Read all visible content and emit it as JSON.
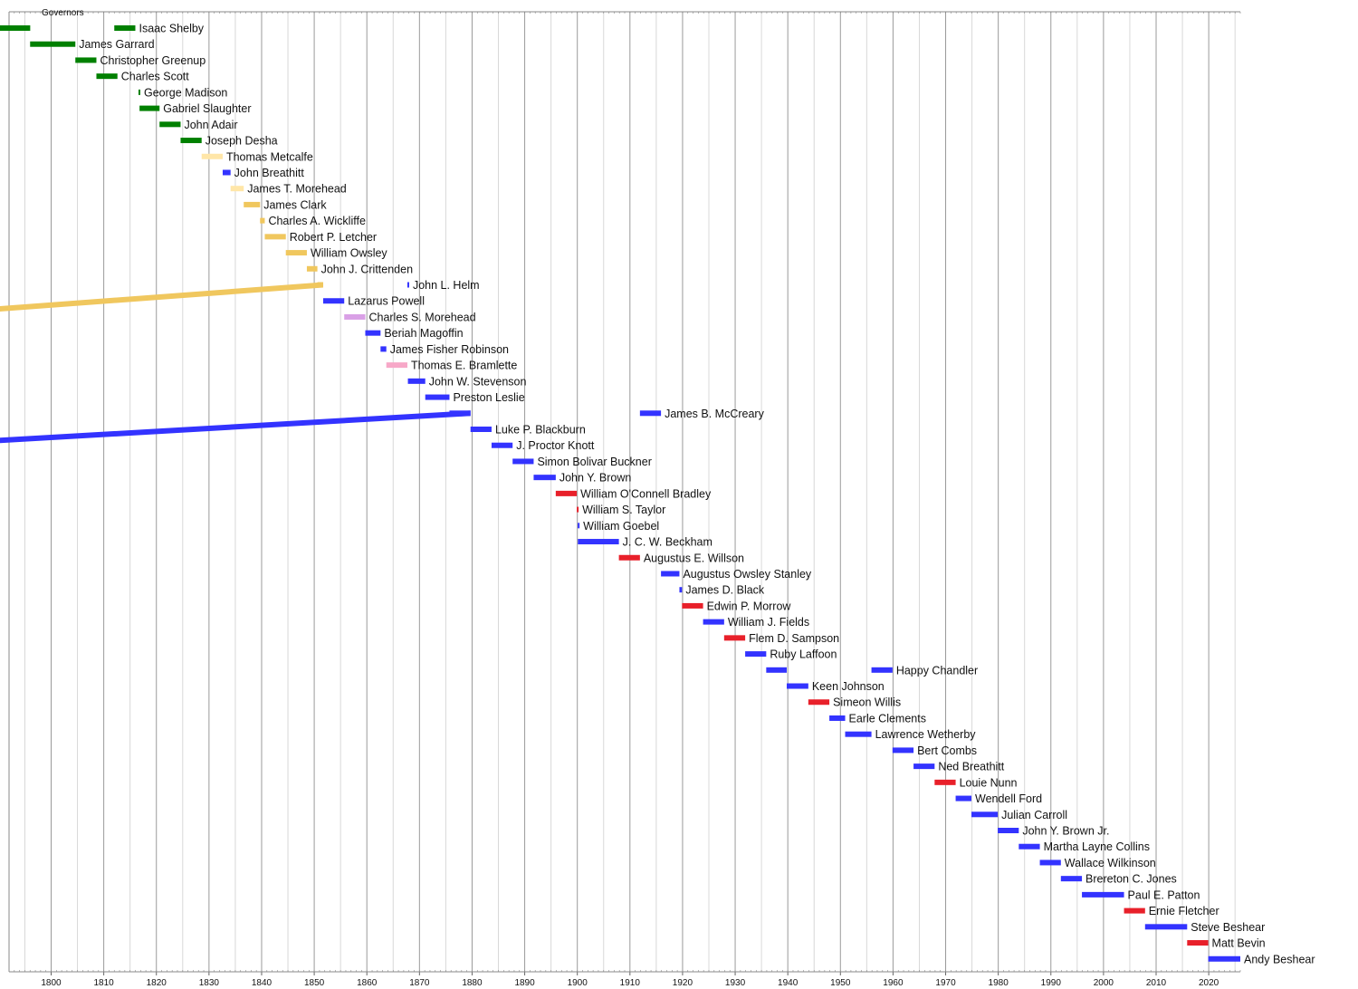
{
  "chart_data": {
    "type": "timeline",
    "title": "Governors",
    "x_range": [
      1792,
      2026
    ],
    "ticks": [
      1800,
      1810,
      1820,
      1830,
      1840,
      1850,
      1860,
      1870,
      1880,
      1890,
      1900,
      1910,
      1920,
      1930,
      1940,
      1950,
      1960,
      1970,
      1980,
      1990,
      2000,
      2010,
      2020
    ],
    "party_colors": {
      "Democratic-Republican": "#008000",
      "Whig": "#f0c75e",
      "Whig-light": "#ffe6a8",
      "Democratic": "#3333ff",
      "Know Nothing": "#d9a0e6",
      "Unionist": "#f7a8c8",
      "Republican": "#e8202a"
    },
    "rows": [
      {
        "name": "Isaac Shelby",
        "terms": [
          {
            "start": 1792,
            "end": 1796,
            "party": "Democratic-Republican"
          },
          {
            "start": 1812,
            "end": 1816,
            "party": "Democratic-Republican"
          }
        ]
      },
      {
        "name": "James Garrard",
        "terms": [
          {
            "start": 1796,
            "end": 1804.6,
            "party": "Democratic-Republican"
          }
        ]
      },
      {
        "name": "Christopher Greenup",
        "terms": [
          {
            "start": 1804.6,
            "end": 1808.6,
            "party": "Democratic-Republican"
          }
        ]
      },
      {
        "name": "Charles Scott",
        "terms": [
          {
            "start": 1808.6,
            "end": 1812.6,
            "party": "Democratic-Republican"
          }
        ]
      },
      {
        "name": "George Madison",
        "terms": [
          {
            "start": 1816.6,
            "end": 1816.8,
            "party": "Democratic-Republican"
          }
        ]
      },
      {
        "name": "Gabriel Slaughter",
        "terms": [
          {
            "start": 1816.8,
            "end": 1820.6,
            "party": "Democratic-Republican"
          }
        ]
      },
      {
        "name": "John Adair",
        "terms": [
          {
            "start": 1820.6,
            "end": 1824.6,
            "party": "Democratic-Republican"
          }
        ]
      },
      {
        "name": "Joseph Desha",
        "terms": [
          {
            "start": 1824.6,
            "end": 1828.6,
            "party": "Democratic-Republican"
          }
        ]
      },
      {
        "name": "Thomas Metcalfe",
        "terms": [
          {
            "start": 1828.6,
            "end": 1832.6,
            "party": "Whig-light"
          }
        ]
      },
      {
        "name": "John Breathitt",
        "terms": [
          {
            "start": 1832.6,
            "end": 1834.1,
            "party": "Democratic"
          }
        ]
      },
      {
        "name": "James T. Morehead",
        "terms": [
          {
            "start": 1834.1,
            "end": 1836.6,
            "party": "Whig-light"
          }
        ]
      },
      {
        "name": "James Clark",
        "terms": [
          {
            "start": 1836.6,
            "end": 1839.7,
            "party": "Whig"
          }
        ]
      },
      {
        "name": "Charles A. Wickliffe",
        "terms": [
          {
            "start": 1839.7,
            "end": 1840.6,
            "party": "Whig"
          }
        ]
      },
      {
        "name": "Robert P. Letcher",
        "terms": [
          {
            "start": 1840.6,
            "end": 1844.6,
            "party": "Whig"
          }
        ]
      },
      {
        "name": "William Owsley",
        "terms": [
          {
            "start": 1844.6,
            "end": 1848.6,
            "party": "Whig"
          }
        ]
      },
      {
        "name": "John J. Crittenden",
        "terms": [
          {
            "start": 1848.6,
            "end": 1850.6,
            "party": "Whig"
          }
        ]
      },
      {
        "name": "John L. Helm",
        "terms": [
          {
            "start": 1850.6,
            "end": 1851.7,
            "party": "Whig"
          },
          {
            "start": 1867.7,
            "end": 1867.8,
            "party": "Democratic"
          }
        ]
      },
      {
        "name": "Lazarus Powell",
        "terms": [
          {
            "start": 1851.7,
            "end": 1855.7,
            "party": "Democratic"
          }
        ]
      },
      {
        "name": "Charles S. Morehead",
        "terms": [
          {
            "start": 1855.7,
            "end": 1859.7,
            "party": "Know Nothing"
          }
        ]
      },
      {
        "name": "Beriah Magoffin",
        "terms": [
          {
            "start": 1859.7,
            "end": 1862.6,
            "party": "Democratic"
          }
        ]
      },
      {
        "name": "James Fisher Robinson",
        "terms": [
          {
            "start": 1862.6,
            "end": 1863.7,
            "party": "Democratic"
          }
        ]
      },
      {
        "name": "Thomas E. Bramlette",
        "terms": [
          {
            "start": 1863.7,
            "end": 1867.7,
            "party": "Unionist"
          }
        ]
      },
      {
        "name": "John W. Stevenson",
        "terms": [
          {
            "start": 1867.8,
            "end": 1871.1,
            "party": "Democratic"
          }
        ]
      },
      {
        "name": "Preston Leslie",
        "terms": [
          {
            "start": 1871.1,
            "end": 1875.7,
            "party": "Democratic"
          }
        ]
      },
      {
        "name": "James B. McCreary",
        "terms": [
          {
            "start": 1875.7,
            "end": 1879.7,
            "party": "Democratic"
          },
          {
            "start": 1911.9,
            "end": 1915.9,
            "party": "Democratic"
          }
        ]
      },
      {
        "name": "Luke P. Blackburn",
        "terms": [
          {
            "start": 1879.7,
            "end": 1883.7,
            "party": "Democratic"
          }
        ]
      },
      {
        "name": "J. Proctor Knott",
        "terms": [
          {
            "start": 1883.7,
            "end": 1887.7,
            "party": "Democratic"
          }
        ]
      },
      {
        "name": "Simon Bolivar Buckner",
        "terms": [
          {
            "start": 1887.7,
            "end": 1891.7,
            "party": "Democratic"
          }
        ]
      },
      {
        "name": "John Y. Brown",
        "terms": [
          {
            "start": 1891.7,
            "end": 1895.9,
            "party": "Democratic"
          }
        ]
      },
      {
        "name": "William O'Connell Bradley",
        "terms": [
          {
            "start": 1895.9,
            "end": 1899.9,
            "party": "Republican"
          }
        ]
      },
      {
        "name": "William S. Taylor",
        "terms": [
          {
            "start": 1899.9,
            "end": 1900.1,
            "party": "Republican"
          }
        ]
      },
      {
        "name": "William Goebel",
        "terms": [
          {
            "start": 1900.08,
            "end": 1900.12,
            "party": "Democratic"
          }
        ]
      },
      {
        "name": "J. C. W. Beckham",
        "terms": [
          {
            "start": 1900.1,
            "end": 1907.9,
            "party": "Democratic"
          }
        ]
      },
      {
        "name": "Augustus E. Willson",
        "terms": [
          {
            "start": 1907.9,
            "end": 1911.9,
            "party": "Republican"
          }
        ]
      },
      {
        "name": "Augustus Owsley Stanley",
        "terms": [
          {
            "start": 1915.9,
            "end": 1919.4,
            "party": "Democratic"
          }
        ]
      },
      {
        "name": "James D. Black",
        "terms": [
          {
            "start": 1919.4,
            "end": 1919.9,
            "party": "Democratic"
          }
        ]
      },
      {
        "name": "Edwin P. Morrow",
        "terms": [
          {
            "start": 1919.9,
            "end": 1923.9,
            "party": "Republican"
          }
        ]
      },
      {
        "name": "William J. Fields",
        "terms": [
          {
            "start": 1923.9,
            "end": 1927.9,
            "party": "Democratic"
          }
        ]
      },
      {
        "name": "Flem D. Sampson",
        "terms": [
          {
            "start": 1927.9,
            "end": 1931.9,
            "party": "Republican"
          }
        ]
      },
      {
        "name": "Ruby Laffoon",
        "terms": [
          {
            "start": 1931.9,
            "end": 1935.9,
            "party": "Democratic"
          }
        ]
      },
      {
        "name": "Happy Chandler",
        "terms": [
          {
            "start": 1935.9,
            "end": 1939.8,
            "party": "Democratic"
          },
          {
            "start": 1955.9,
            "end": 1959.9,
            "party": "Democratic"
          }
        ]
      },
      {
        "name": "Keen Johnson",
        "terms": [
          {
            "start": 1939.8,
            "end": 1943.9,
            "party": "Democratic"
          }
        ]
      },
      {
        "name": "Simeon Willis",
        "terms": [
          {
            "start": 1943.9,
            "end": 1947.9,
            "party": "Republican"
          }
        ]
      },
      {
        "name": "Earle Clements",
        "terms": [
          {
            "start": 1947.9,
            "end": 1950.9,
            "party": "Democratic"
          }
        ]
      },
      {
        "name": "Lawrence Wetherby",
        "terms": [
          {
            "start": 1950.9,
            "end": 1955.9,
            "party": "Democratic"
          }
        ]
      },
      {
        "name": "Bert Combs",
        "terms": [
          {
            "start": 1959.9,
            "end": 1963.9,
            "party": "Democratic"
          }
        ]
      },
      {
        "name": "Ned Breathitt",
        "terms": [
          {
            "start": 1963.9,
            "end": 1967.9,
            "party": "Democratic"
          }
        ]
      },
      {
        "name": "Louie Nunn",
        "terms": [
          {
            "start": 1967.9,
            "end": 1971.9,
            "party": "Republican"
          }
        ]
      },
      {
        "name": "Wendell Ford",
        "terms": [
          {
            "start": 1971.9,
            "end": 1974.9,
            "party": "Democratic"
          }
        ]
      },
      {
        "name": "Julian Carroll",
        "terms": [
          {
            "start": 1974.9,
            "end": 1979.9,
            "party": "Democratic"
          }
        ]
      },
      {
        "name": "John Y. Brown Jr.",
        "terms": [
          {
            "start": 1979.9,
            "end": 1983.9,
            "party": "Democratic"
          }
        ]
      },
      {
        "name": "Martha Layne Collins",
        "terms": [
          {
            "start": 1983.9,
            "end": 1987.9,
            "party": "Democratic"
          }
        ]
      },
      {
        "name": "Wallace Wilkinson",
        "terms": [
          {
            "start": 1987.9,
            "end": 1991.9,
            "party": "Democratic"
          }
        ]
      },
      {
        "name": "Brereton C. Jones",
        "terms": [
          {
            "start": 1991.9,
            "end": 1995.9,
            "party": "Democratic"
          }
        ]
      },
      {
        "name": "Paul E. Patton",
        "terms": [
          {
            "start": 1995.9,
            "end": 2003.9,
            "party": "Democratic"
          }
        ]
      },
      {
        "name": "Ernie Fletcher",
        "terms": [
          {
            "start": 2003.9,
            "end": 2007.9,
            "party": "Republican"
          }
        ]
      },
      {
        "name": "Steve Beshear",
        "terms": [
          {
            "start": 2007.9,
            "end": 2015.9,
            "party": "Democratic"
          }
        ]
      },
      {
        "name": "Matt Bevin",
        "terms": [
          {
            "start": 2015.9,
            "end": 2019.9,
            "party": "Republican"
          }
        ]
      },
      {
        "name": "Andy Beshear",
        "terms": [
          {
            "start": 2019.9,
            "end": 2026,
            "party": "Democratic"
          }
        ]
      }
    ]
  }
}
